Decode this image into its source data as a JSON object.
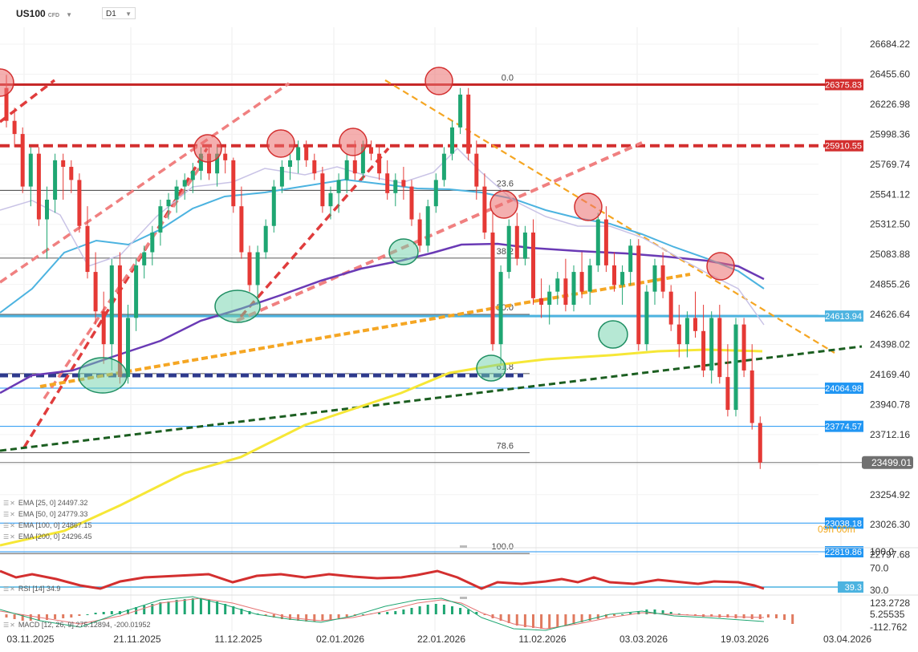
{
  "header": {
    "symbol": "US100",
    "symbol_suffix": "CFD",
    "timeframe": "D1"
  },
  "price_axis": {
    "ticks": [
      "26684.22",
      "26455.60",
      "26226.98",
      "25998.36",
      "25769.74",
      "25541.12",
      "25312.50",
      "25083.88",
      "24855.26",
      "24626.64",
      "24398.02",
      "24169.40",
      "23940.78",
      "23712.16",
      "23483.54",
      "23254.92",
      "23026.30",
      "22797.68"
    ],
    "level_labels": [
      {
        "text": "26375.83",
        "color": "#d32f2f"
      },
      {
        "text": "25910.55",
        "color": "#d32f2f"
      },
      {
        "text": "24613.94",
        "color": "#4cb3e0"
      },
      {
        "text": "24064.98",
        "color": "#2196f3"
      },
      {
        "text": "23774.57",
        "color": "#2196f3"
      },
      {
        "text": "23038.18",
        "color": "#2196f3"
      },
      {
        "text": "22819.86",
        "color": "#2196f3"
      }
    ],
    "last_price": "23499.01"
  },
  "date_axis": [
    "03.11.2025",
    "21.11.2025",
    "11.12.2025",
    "02.01.2026",
    "22.01.2026",
    "11.02.2026",
    "03.03.2026",
    "19.03.2026",
    "03.04.2026"
  ],
  "fibonacci": [
    "0.0",
    "23.6",
    "38.2",
    "50.0",
    "61.8",
    "78.6",
    "100.0"
  ],
  "indicators": {
    "ema": [
      "EMA [25, 0] 24497.32",
      "EMA [50, 0] 24779.33",
      "EMA [100, 0] 24867.15",
      "EMA [200, 0] 24296.45"
    ],
    "rsi": "RSI [14] 34.9",
    "rsi_axis": [
      "100.0",
      "70.0",
      "30.0"
    ],
    "rsi_level": "39.3",
    "macd": "MACD [12, 26, 9] 275.12894, -200.01952",
    "macd_axis": [
      "123.2728",
      "5.25535",
      "-112.762"
    ]
  },
  "countdown": "09h 00m",
  "colors": {
    "up": "#1ea672",
    "down": "#e53935",
    "ema25": "#c9c3e6",
    "ema50": "#4cb3e0",
    "ema100": "#6a3ab5",
    "ema200": "#f6e736"
  },
  "chart_data": {
    "type": "candlestick",
    "x_start": "2025-11-03",
    "y_unit": "index points",
    "ohlc": [
      [
        26350,
        26450,
        26050,
        26100
      ],
      [
        26100,
        26200,
        25900,
        26000
      ],
      [
        26000,
        26050,
        25550,
        25600
      ],
      [
        25600,
        25900,
        25450,
        25850
      ],
      [
        25850,
        25900,
        25300,
        25350
      ],
      [
        25350,
        25600,
        25050,
        25500
      ],
      [
        25500,
        25850,
        25400,
        25800
      ],
      [
        25800,
        25850,
        25500,
        25750
      ],
      [
        25750,
        25800,
        25550,
        25650
      ],
      [
        25650,
        25700,
        25250,
        25300
      ],
      [
        25300,
        25450,
        24900,
        24950
      ],
      [
        24950,
        25100,
        24550,
        24650
      ],
      [
        24650,
        24800,
        24250,
        24400
      ],
      [
        24400,
        25050,
        24200,
        25000
      ],
      [
        25000,
        25100,
        24100,
        24150
      ],
      [
        24150,
        24700,
        24100,
        24600
      ],
      [
        24600,
        25050,
        24500,
        25000
      ],
      [
        25000,
        25150,
        24900,
        25100
      ],
      [
        25100,
        25300,
        25000,
        25250
      ],
      [
        25250,
        25500,
        25150,
        25450
      ],
      [
        25450,
        25550,
        25350,
        25500
      ],
      [
        25500,
        25650,
        25400,
        25600
      ],
      [
        25600,
        25700,
        25500,
        25650
      ],
      [
        25650,
        25780,
        25550,
        25720
      ],
      [
        25720,
        25900,
        25650,
        25850
      ],
      [
        25850,
        25900,
        25650,
        25700
      ],
      [
        25700,
        25900,
        25600,
        25850
      ],
      [
        25850,
        25900,
        25700,
        25800
      ],
      [
        25800,
        25820,
        25400,
        25450
      ],
      [
        25450,
        25600,
        25050,
        25100
      ],
      [
        25100,
        25150,
        24800,
        24850
      ],
      [
        24850,
        25150,
        24700,
        25100
      ],
      [
        25100,
        25350,
        25050,
        25300
      ],
      [
        25300,
        25650,
        25250,
        25600
      ],
      [
        25600,
        25800,
        25550,
        25750
      ],
      [
        25750,
        25850,
        25650,
        25800
      ],
      [
        25800,
        25950,
        25700,
        25900
      ],
      [
        25900,
        25950,
        25750,
        25800
      ],
      [
        25800,
        25850,
        25650,
        25700
      ],
      [
        25700,
        25750,
        25400,
        25450
      ],
      [
        25450,
        25600,
        25350,
        25550
      ],
      [
        25550,
        25700,
        25400,
        25650
      ],
      [
        25650,
        25850,
        25550,
        25800
      ],
      [
        25800,
        25950,
        25650,
        25700
      ],
      [
        25700,
        25950,
        25650,
        25900
      ],
      [
        25900,
        25950,
        25800,
        25850
      ],
      [
        25850,
        25900,
        25650,
        25700
      ],
      [
        25700,
        25800,
        25500,
        25550
      ],
      [
        25550,
        25700,
        25450,
        25650
      ],
      [
        25650,
        25750,
        25500,
        25600
      ],
      [
        25600,
        25650,
        25300,
        25350
      ],
      [
        25350,
        25400,
        25100,
        25150
      ],
      [
        25150,
        25500,
        25100,
        25450
      ],
      [
        25450,
        25700,
        25400,
        25650
      ],
      [
        25650,
        25900,
        25600,
        25850
      ],
      [
        25850,
        26100,
        25800,
        26050
      ],
      [
        26050,
        26350,
        26000,
        26300
      ],
      [
        26300,
        26350,
        25800,
        25850
      ],
      [
        25850,
        25950,
        25500,
        25600
      ],
      [
        25600,
        25700,
        25200,
        25250
      ],
      [
        25250,
        25400,
        24350,
        24400
      ],
      [
        24400,
        25000,
        24250,
        24950
      ],
      [
        24950,
        25350,
        24900,
        25300
      ],
      [
        25300,
        25400,
        25000,
        25050
      ],
      [
        25050,
        25300,
        25000,
        25250
      ],
      [
        25250,
        25350,
        24700,
        24750
      ],
      [
        24750,
        24900,
        24600,
        24700
      ],
      [
        24700,
        24850,
        24550,
        24800
      ],
      [
        24800,
        24950,
        24700,
        24900
      ],
      [
        24900,
        25050,
        24650,
        24700
      ],
      [
        24700,
        25000,
        24650,
        24950
      ],
      [
        24950,
        25100,
        24750,
        24800
      ],
      [
        24800,
        25050,
        24700,
        25000
      ],
      [
        25000,
        25400,
        24950,
        25350
      ],
      [
        25350,
        25450,
        24950,
        25000
      ],
      [
        25000,
        25100,
        24800,
        24850
      ],
      [
        24850,
        25000,
        24700,
        24950
      ],
      [
        24950,
        25200,
        24850,
        25150
      ],
      [
        25150,
        25200,
        24350,
        24400
      ],
      [
        24400,
        24850,
        24350,
        24800
      ],
      [
        24800,
        25050,
        24700,
        25000
      ],
      [
        25000,
        25100,
        24750,
        24800
      ],
      [
        24800,
        24850,
        24500,
        24550
      ],
      [
        24550,
        24700,
        24300,
        24400
      ],
      [
        24400,
        24650,
        24300,
        24600
      ],
      [
        24600,
        24800,
        24450,
        24500
      ],
      [
        24500,
        24700,
        24150,
        24200
      ],
      [
        24200,
        24650,
        24100,
        24600
      ],
      [
        24600,
        24700,
        24100,
        24150
      ],
      [
        24150,
        24400,
        23850,
        23900
      ],
      [
        23900,
        24600,
        23850,
        24550
      ],
      [
        24550,
        24600,
        24150,
        24200
      ],
      [
        24200,
        24400,
        23750,
        23800
      ],
      [
        23800,
        23850,
        23450,
        23499
      ]
    ],
    "series": [
      {
        "name": "EMA 25"
      },
      {
        "name": "EMA 50"
      },
      {
        "name": "EMA 100"
      },
      {
        "name": "EMA 200"
      }
    ]
  }
}
